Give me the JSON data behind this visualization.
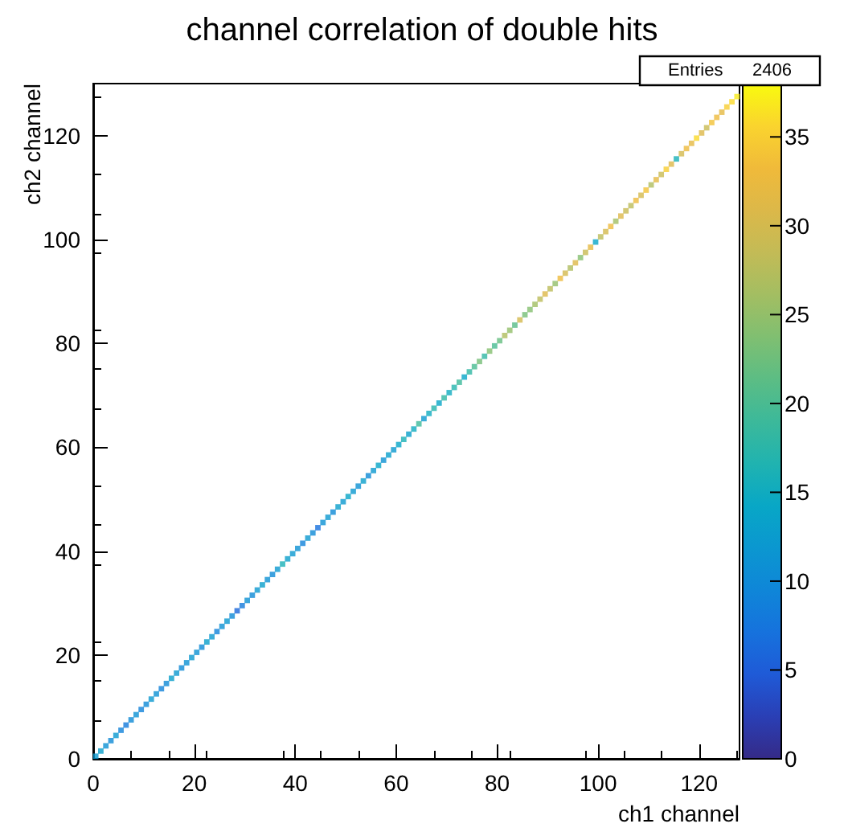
{
  "chart_data": {
    "type": "scatter",
    "title": "channel correlation of double hits",
    "xlabel": "ch1 channel",
    "ylabel": "ch2 channel",
    "x": [
      0.5,
      1.5,
      2.5,
      3.5,
      4.5,
      5.5,
      6.5,
      7.5,
      8.5,
      9.5,
      10.5,
      11.5,
      12.5,
      13.5,
      14.5,
      15.5,
      16.5,
      17.5,
      18.5,
      19.5,
      20.5,
      21.5,
      22.5,
      23.5,
      24.5,
      25.5,
      26.5,
      27.5,
      28.5,
      29.5,
      30.5,
      31.5,
      32.5,
      33.5,
      34.5,
      35.5,
      36.5,
      37.5,
      38.5,
      39.5,
      40.5,
      41.5,
      42.5,
      43.5,
      44.5,
      45.5,
      46.5,
      47.5,
      48.5,
      49.5,
      50.5,
      51.5,
      52.5,
      53.5,
      54.5,
      55.5,
      56.5,
      57.5,
      58.5,
      59.5,
      60.5,
      61.5,
      62.5,
      63.5,
      64.5,
      65.5,
      66.5,
      67.5,
      68.5,
      69.5,
      70.5,
      71.5,
      72.5,
      73.5,
      74.5,
      75.5,
      76.5,
      77.5,
      78.5,
      79.5,
      80.5,
      81.5,
      82.5,
      83.5,
      84.5,
      85.5,
      86.5,
      87.5,
      88.5,
      89.5,
      90.5,
      91.5,
      92.5,
      93.5,
      94.5,
      95.5,
      96.5,
      97.5,
      98.5,
      99.5,
      100.5,
      101.5,
      102.5,
      103.5,
      104.5,
      105.5,
      106.5,
      107.5,
      108.5,
      109.5,
      110.5,
      111.5,
      112.5,
      113.5,
      114.5,
      115.5,
      116.5,
      117.5,
      118.5,
      119.5,
      120.5,
      121.5,
      122.5,
      123.5,
      124.5,
      125.5,
      126.5,
      127.5
    ],
    "values": [
      0.5,
      1.5,
      2.5,
      3.5,
      4.5,
      5.5,
      6.5,
      7.5,
      8.5,
      9.5,
      10.5,
      11.5,
      12.5,
      13.5,
      14.5,
      15.5,
      16.5,
      17.5,
      18.5,
      19.5,
      20.5,
      21.5,
      22.5,
      23.5,
      24.5,
      25.5,
      26.5,
      27.5,
      28.5,
      29.5,
      30.5,
      31.5,
      32.5,
      33.5,
      34.5,
      35.5,
      36.5,
      37.5,
      38.5,
      39.5,
      40.5,
      41.5,
      42.5,
      43.5,
      44.5,
      45.5,
      46.5,
      47.5,
      48.5,
      49.5,
      50.5,
      51.5,
      52.5,
      53.5,
      54.5,
      55.5,
      56.5,
      57.5,
      58.5,
      59.5,
      60.5,
      61.5,
      62.5,
      63.5,
      64.5,
      65.5,
      66.5,
      67.5,
      68.5,
      69.5,
      70.5,
      71.5,
      72.5,
      73.5,
      74.5,
      75.5,
      76.5,
      77.5,
      78.5,
      79.5,
      80.5,
      81.5,
      82.5,
      83.5,
      84.5,
      85.5,
      86.5,
      87.5,
      88.5,
      89.5,
      90.5,
      91.5,
      92.5,
      93.5,
      94.5,
      95.5,
      96.5,
      97.5,
      98.5,
      99.5,
      100.5,
      101.5,
      102.5,
      103.5,
      104.5,
      105.5,
      106.5,
      107.5,
      108.5,
      109.5,
      110.5,
      111.5,
      112.5,
      113.5,
      114.5,
      115.5,
      116.5,
      117.5,
      118.5,
      119.5,
      120.5,
      121.5,
      122.5,
      123.5,
      124.5,
      125.5,
      126.5,
      127.5
    ],
    "cvalues": [
      12,
      13,
      11,
      10,
      12,
      9,
      8,
      10,
      11,
      9,
      10,
      12,
      11,
      9,
      10,
      13,
      12,
      10,
      11,
      12,
      11,
      10,
      13,
      12,
      9,
      11,
      12,
      10,
      6,
      8,
      11,
      10,
      12,
      13,
      11,
      10,
      12,
      16,
      13,
      12,
      11,
      9,
      12,
      10,
      7,
      11,
      12,
      10,
      13,
      12,
      14,
      12,
      11,
      13,
      10,
      12,
      14,
      11,
      13,
      12,
      14,
      16,
      13,
      15,
      19,
      12,
      15,
      17,
      14,
      18,
      15,
      17,
      19,
      14,
      18,
      20,
      23,
      18,
      24,
      20,
      22,
      27,
      25,
      21,
      30,
      23,
      24,
      26,
      28,
      31,
      28,
      25,
      33,
      30,
      27,
      31,
      24,
      29,
      32,
      14,
      28,
      30,
      33,
      26,
      31,
      29,
      28,
      33,
      30,
      34,
      27,
      32,
      29,
      35,
      31,
      16,
      30,
      33,
      32,
      36,
      31,
      29,
      34,
      33,
      32,
      35,
      36,
      37
    ],
    "marker": "square",
    "xlim": [
      0,
      128
    ],
    "ylim": [
      0,
      130
    ],
    "xticks": [
      0,
      20,
      40,
      60,
      80,
      100,
      120
    ],
    "yticks": [
      0,
      20,
      40,
      60,
      80,
      100,
      120
    ],
    "clim": [
      0,
      38
    ],
    "cticks": [
      0,
      5,
      10,
      15,
      20,
      25,
      30,
      35
    ],
    "annotations": [
      "Entries 2406"
    ]
  }
}
